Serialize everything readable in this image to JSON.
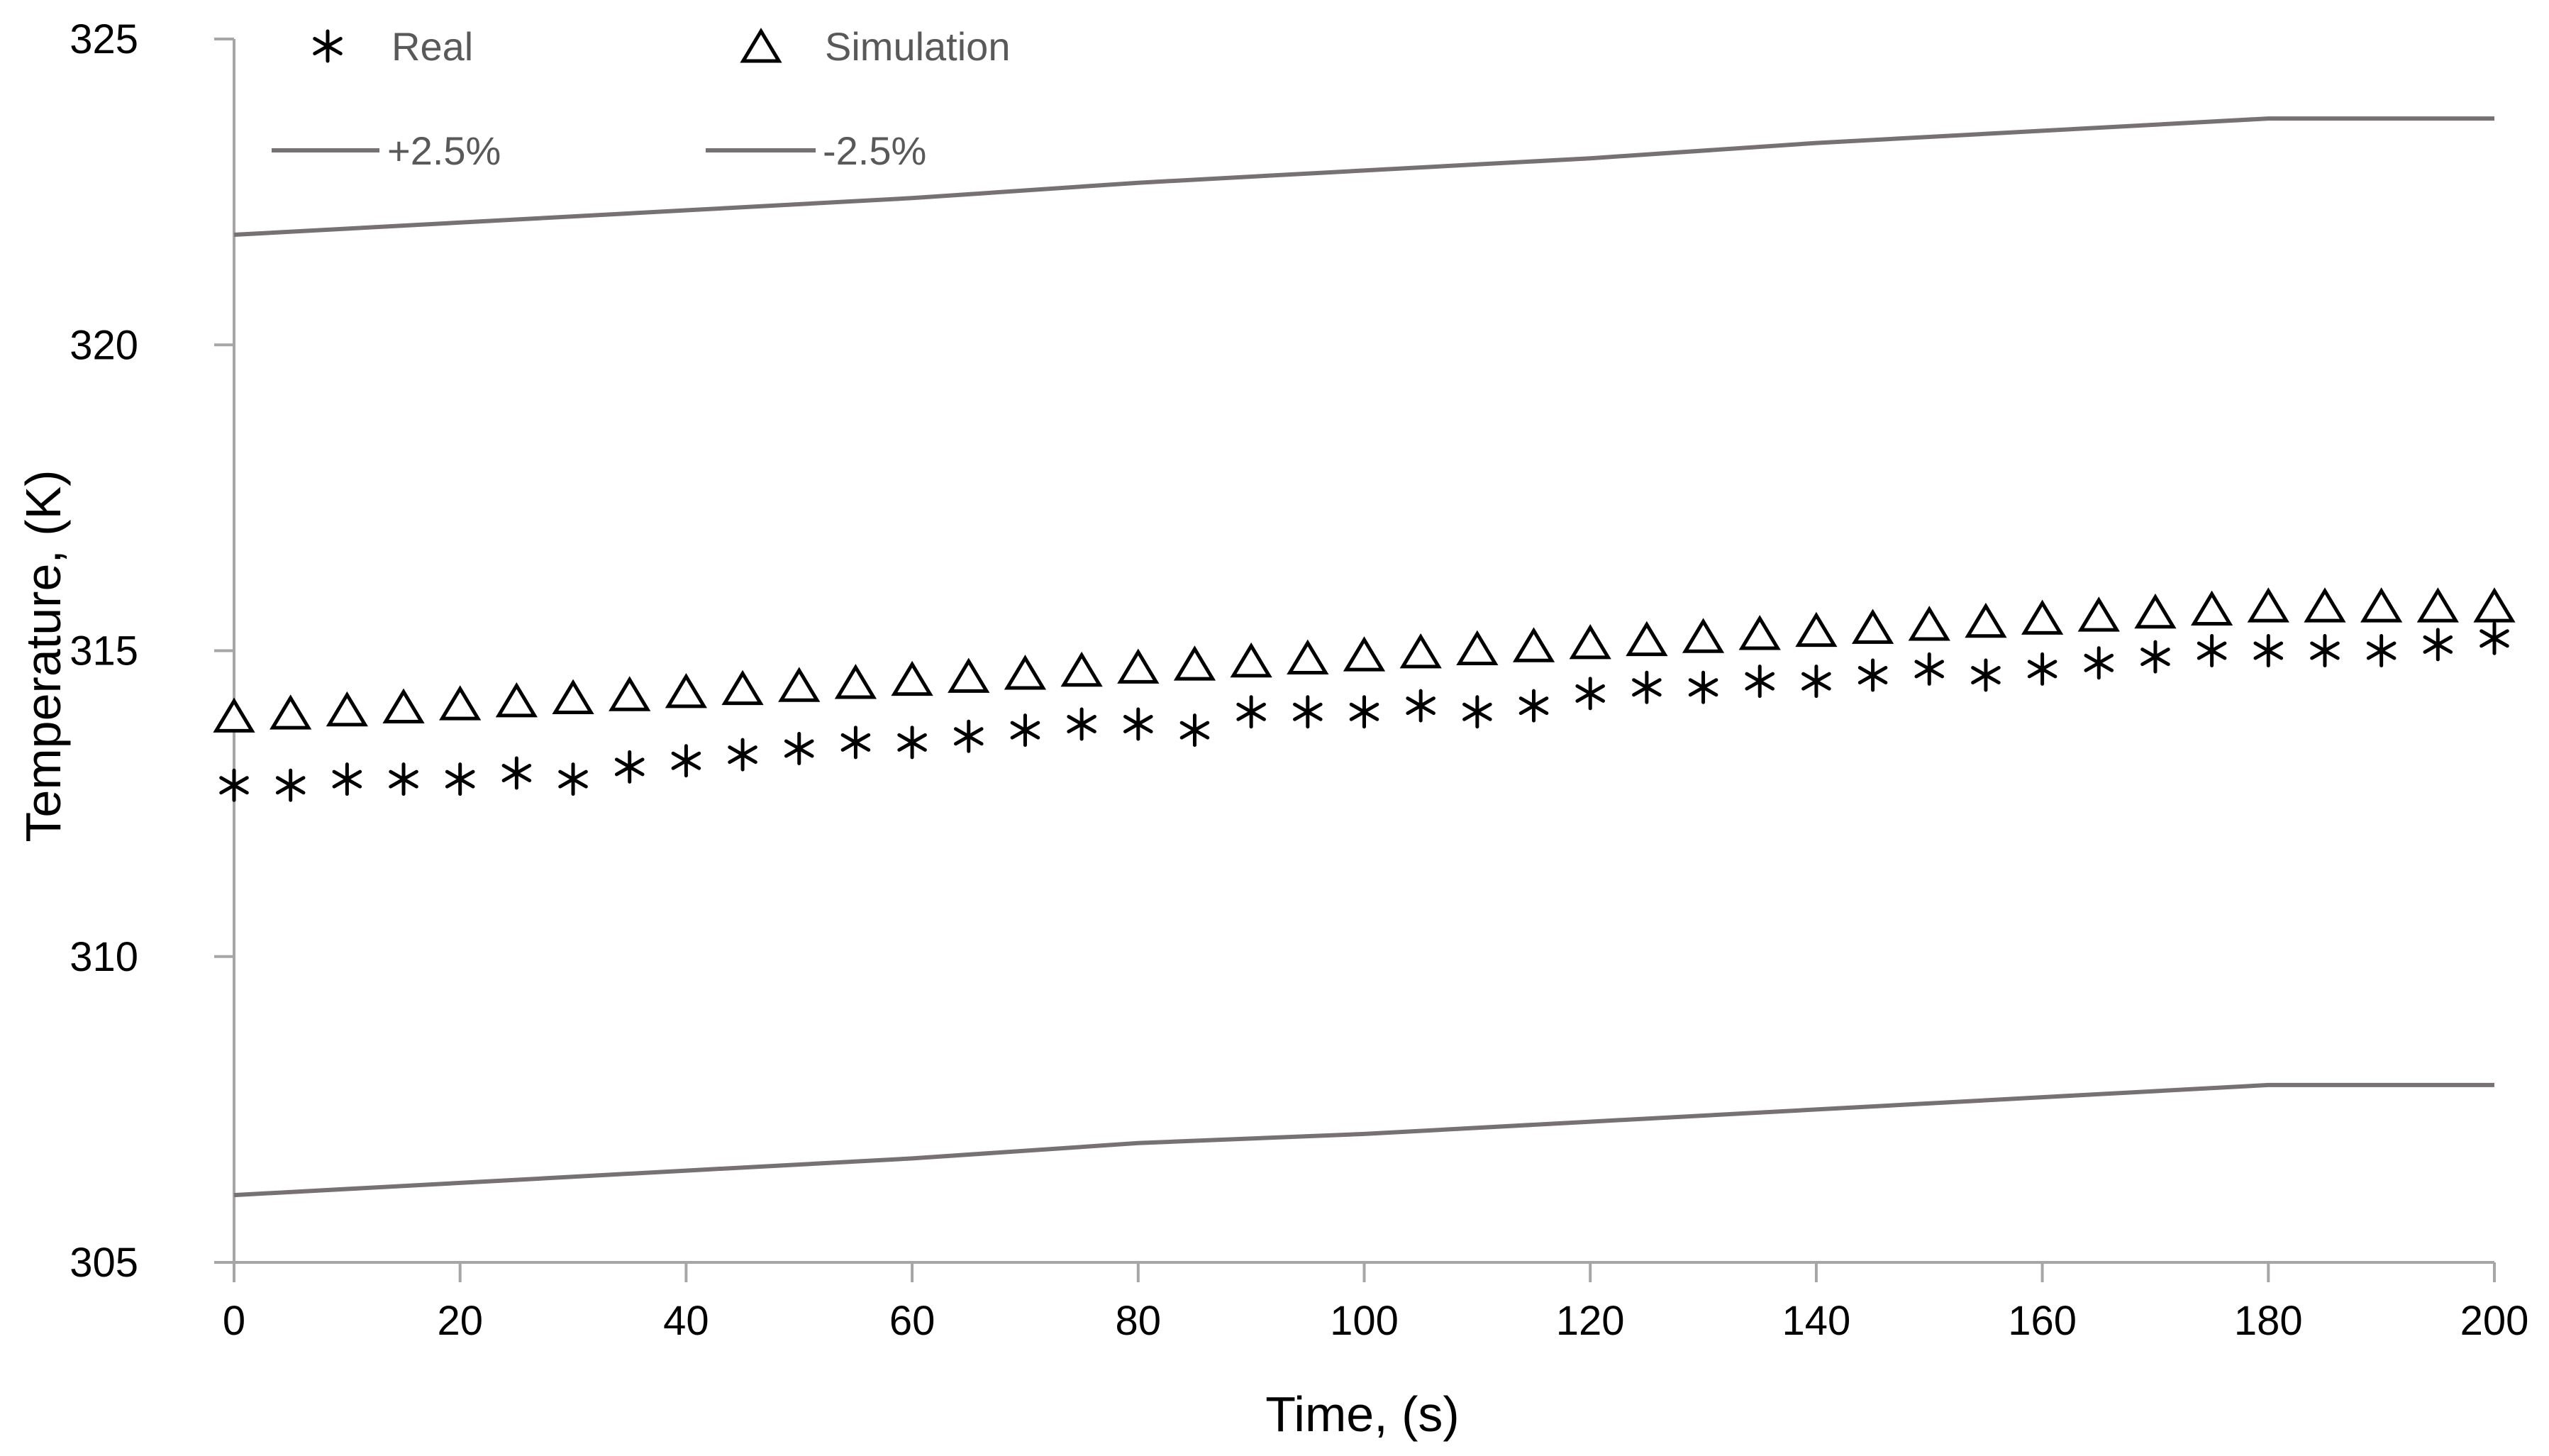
{
  "chart_data": {
    "type": "scatter",
    "title": "",
    "xlabel": "Time, (s)",
    "ylabel": "Temperature, (K)",
    "xlim": [
      0,
      200
    ],
    "ylim": [
      305,
      325
    ],
    "x_ticks": [
      "0",
      "20",
      "40",
      "60",
      "80",
      "100",
      "120",
      "140",
      "160",
      "180",
      "200"
    ],
    "y_ticks": [
      "305",
      "310",
      "315",
      "320",
      "325"
    ],
    "grid": false,
    "legend_position": "top-left",
    "series": [
      {
        "name": "Real",
        "marker": "asterisk",
        "color": "#000000",
        "x": [
          0,
          5,
          10,
          15,
          20,
          25,
          30,
          35,
          40,
          45,
          50,
          55,
          60,
          65,
          70,
          75,
          80,
          85,
          90,
          95,
          100,
          105,
          110,
          115,
          120,
          125,
          130,
          135,
          140,
          145,
          150,
          155,
          160,
          165,
          170,
          175,
          180,
          185,
          190,
          195,
          200
        ],
        "values": [
          312.8,
          312.8,
          312.9,
          312.9,
          312.9,
          313.0,
          312.9,
          313.1,
          313.2,
          313.3,
          313.4,
          313.5,
          313.5,
          313.6,
          313.7,
          313.8,
          313.8,
          313.7,
          314.0,
          314.0,
          314.0,
          314.1,
          314.0,
          314.1,
          314.3,
          314.4,
          314.4,
          314.5,
          314.5,
          314.6,
          314.7,
          314.6,
          314.7,
          314.8,
          314.9,
          315.0,
          315.0,
          315.0,
          315.0,
          315.1,
          315.2
        ]
      },
      {
        "name": "Simulation",
        "marker": "triangle",
        "color": "#000000",
        "x": [
          0,
          5,
          10,
          15,
          20,
          25,
          30,
          35,
          40,
          45,
          50,
          55,
          60,
          65,
          70,
          75,
          80,
          85,
          90,
          95,
          100,
          105,
          110,
          115,
          120,
          125,
          130,
          135,
          140,
          145,
          150,
          155,
          160,
          165,
          170,
          175,
          180,
          185,
          190,
          195,
          200
        ],
        "values": [
          313.9,
          313.95,
          314.0,
          314.05,
          314.1,
          314.15,
          314.2,
          314.25,
          314.3,
          314.35,
          314.4,
          314.45,
          314.5,
          314.55,
          314.6,
          314.65,
          314.7,
          314.75,
          314.8,
          314.85,
          314.9,
          314.95,
          315.0,
          315.05,
          315.1,
          315.15,
          315.2,
          315.25,
          315.3,
          315.35,
          315.4,
          315.45,
          315.5,
          315.55,
          315.6,
          315.65,
          315.7,
          315.7,
          315.7,
          315.7,
          315.7
        ]
      },
      {
        "name": "+2.5%",
        "marker": "line",
        "color": "#777174",
        "x": [
          0,
          20,
          40,
          60,
          80,
          100,
          120,
          140,
          160,
          180,
          200
        ],
        "values": [
          321.8,
          322.0,
          322.2,
          322.4,
          322.65,
          322.85,
          323.05,
          323.3,
          323.5,
          323.7,
          323.7
        ]
      },
      {
        "name": "-2.5%",
        "marker": "line",
        "color": "#777174",
        "x": [
          0,
          20,
          40,
          60,
          80,
          100,
          120,
          140,
          160,
          180,
          200
        ],
        "values": [
          306.1,
          306.3,
          306.5,
          306.7,
          306.95,
          307.1,
          307.3,
          307.5,
          307.7,
          307.9,
          307.9
        ]
      }
    ]
  }
}
